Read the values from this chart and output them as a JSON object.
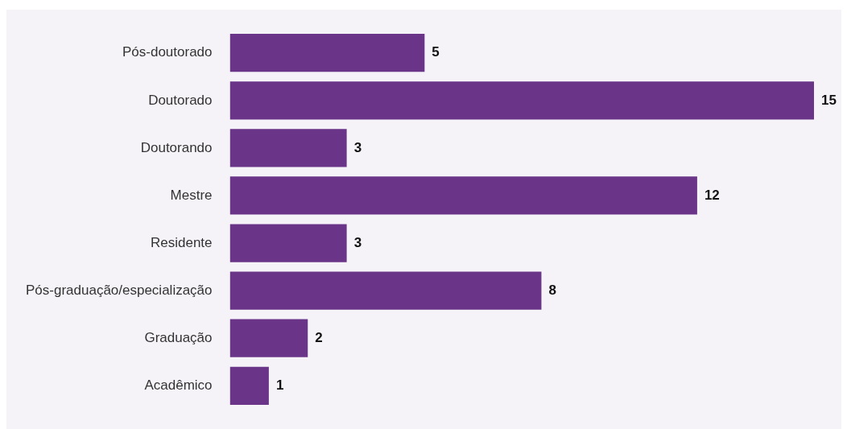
{
  "chart_data": {
    "type": "bar",
    "orientation": "horizontal",
    "categories": [
      "Pós-doutorado",
      "Doutorado",
      "Doutorando",
      "Mestre",
      "Residente",
      "Pós-graduação/especialização",
      "Graduação",
      "Acadêmico"
    ],
    "values": [
      5,
      15,
      3,
      12,
      3,
      8,
      2,
      1
    ],
    "color": "#6a3589",
    "data_labels": true,
    "tick_labels": "y"
  }
}
